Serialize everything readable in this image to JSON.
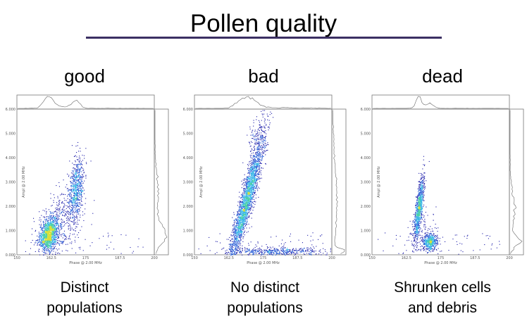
{
  "slide": {
    "title": "Pollen quality"
  },
  "chart_data": [
    {
      "type": "scatter",
      "panel_label": "good",
      "caption_line1": "Distinct",
      "caption_line2": "populations",
      "xlabel": "Phase @ 2.00 MHz",
      "ylabel": "Ampl @ 2.00 MHz",
      "xlim": [
        150,
        200
      ],
      "ylim": [
        0,
        6000
      ],
      "xticks": [
        "150",
        "162.5",
        "175",
        "187.5",
        "200"
      ],
      "yticks": [
        "0.000",
        "1.000",
        "2.000",
        "3.000",
        "4.000",
        "5.000",
        "6.000"
      ],
      "populations": [
        {
          "x": 161.5,
          "y": 850,
          "sx": 1.7,
          "sy": 340,
          "rho": 0.3,
          "n": 1300
        },
        {
          "x": 171.5,
          "y": 2700,
          "sx": 1.4,
          "sy": 650,
          "rho": 0.3,
          "n": 700
        },
        {
          "x": 166,
          "y": 1500,
          "sx": 3.5,
          "sy": 700,
          "rho": 0.3,
          "n": 350
        }
      ]
    },
    {
      "type": "scatter",
      "panel_label": "bad",
      "caption_line1": "No distinct",
      "caption_line2": "populations",
      "xlabel": "Phase @ 2.00 MHz",
      "ylabel": "Ampl @ 2.00 MHz",
      "xlim": [
        150,
        200
      ],
      "ylim": [
        0,
        6000
      ],
      "xticks": [
        "150",
        "162.5",
        "175",
        "187.5",
        "200"
      ],
      "yticks": [
        "0.000",
        "1.000",
        "2.000",
        "3.000",
        "4.000",
        "5.000",
        "6.000"
      ],
      "populations": [
        {
          "x": 168.5,
          "y": 2100,
          "sx": 3.2,
          "sy": 1300,
          "rho": 0.93,
          "n": 2400
        },
        {
          "x": 180,
          "y": 150,
          "sx": 9,
          "sy": 80,
          "rho": 0,
          "n": 450
        },
        {
          "x": 173,
          "y": 4700,
          "sx": 1.8,
          "sy": 700,
          "rho": 0.5,
          "n": 200
        }
      ]
    },
    {
      "type": "scatter",
      "panel_label": "dead",
      "caption_line1": "Shrunken cells",
      "caption_line2": "and debris",
      "xlabel": "Phase @ 2.00 MHz",
      "ylabel": "Ampl @ 2.00 MHz",
      "xlim": [
        150,
        200
      ],
      "ylim": [
        0,
        6000
      ],
      "xticks": [
        "150",
        "162.5",
        "175",
        "187.5",
        "200"
      ],
      "yticks": [
        "0.000",
        "1.000",
        "2.000",
        "3.000",
        "4.000",
        "5.000",
        "6.000"
      ],
      "populations": [
        {
          "x": 167,
          "y": 1900,
          "sx": 0.9,
          "sy": 700,
          "rho": 0.75,
          "n": 900
        },
        {
          "x": 171,
          "y": 550,
          "sx": 1.3,
          "sy": 170,
          "rho": 0.1,
          "n": 500
        },
        {
          "x": 168.5,
          "y": 900,
          "sx": 2.5,
          "sy": 500,
          "rho": 0.2,
          "n": 120
        }
      ]
    }
  ]
}
